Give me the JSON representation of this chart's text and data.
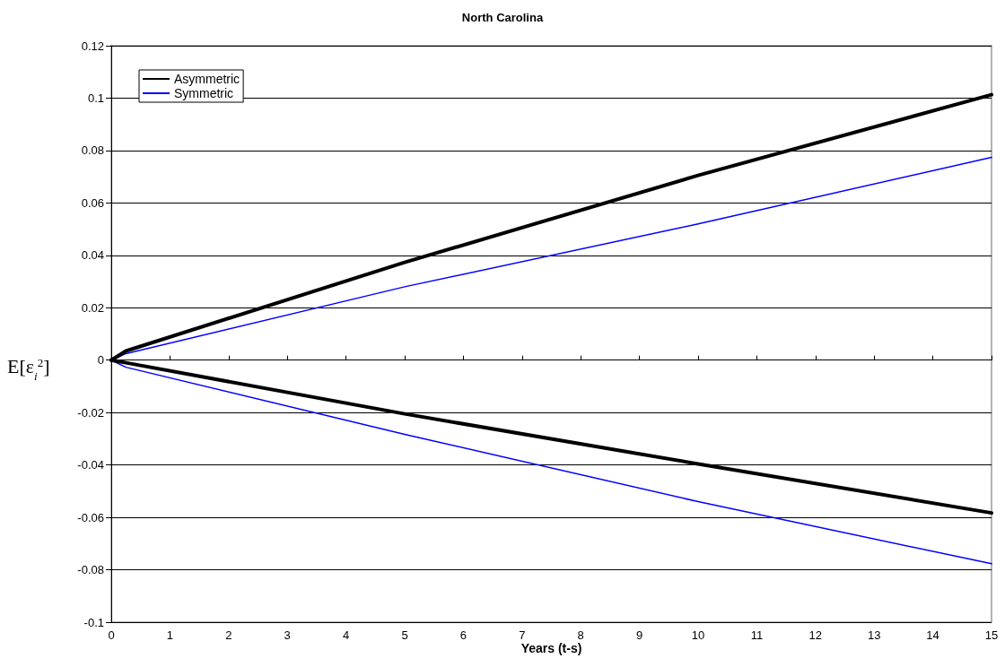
{
  "chart_data": {
    "type": "line",
    "title": "North Carolina",
    "xlabel": "Years (t-s)",
    "ylabel": "E[ε$_{i}$$^{2}$]",
    "xlim": [
      0,
      15
    ],
    "xticks": [
      0,
      1,
      2,
      3,
      4,
      5,
      6,
      7,
      8,
      9,
      10,
      11,
      12,
      13,
      14,
      15
    ],
    "ylim": [
      -0.1,
      0.12
    ],
    "yticks": [
      -0.1,
      -0.08,
      -0.06,
      -0.04,
      -0.02,
      0,
      0.02,
      0.04,
      0.06,
      0.08,
      0.1,
      0.12
    ],
    "grid": "y",
    "legend": "top left",
    "marker": "none",
    "line_style": "solid",
    "series": [
      {
        "name": "Asymmetric",
        "color": "#000000",
        "x": [
          0,
          0.25,
          5,
          10,
          15
        ],
        "values": [
          0,
          0.0035,
          0.0373,
          0.0705,
          0.1013
        ]
      },
      {
        "name": "Symmetric",
        "color": "#0000ff",
        "x": [
          0,
          0.25,
          5,
          10,
          15
        ],
        "values": [
          0,
          0.0025,
          0.028,
          0.052,
          0.0774
        ]
      },
      {
        "color": "#000000",
        "x": [
          0,
          0.25,
          5,
          10,
          15
        ],
        "values": [
          0,
          -0.001,
          -0.0205,
          -0.0396,
          -0.0583
        ]
      },
      {
        "color": "#0000ff",
        "x": [
          0,
          0.25,
          5,
          10,
          15
        ],
        "values": [
          0,
          -0.0027,
          -0.0283,
          -0.054,
          -0.0777
        ]
      }
    ]
  }
}
